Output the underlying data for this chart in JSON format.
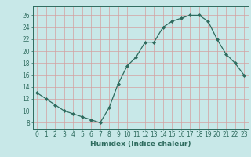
{
  "x": [
    0,
    1,
    2,
    3,
    4,
    5,
    6,
    7,
    8,
    9,
    10,
    11,
    12,
    13,
    14,
    15,
    16,
    17,
    18,
    19,
    20,
    21,
    22,
    23
  ],
  "y": [
    13,
    12,
    11,
    10,
    9.5,
    9,
    8.5,
    8,
    10.5,
    14.5,
    17.5,
    19,
    21.5,
    21.5,
    24,
    25,
    25.5,
    26,
    26,
    25,
    22,
    19.5,
    18,
    16
  ],
  "xlabel": "Humidex (Indice chaleur)",
  "xlim": [
    -0.5,
    23.5
  ],
  "ylim": [
    7,
    27.5
  ],
  "yticks": [
    8,
    10,
    12,
    14,
    16,
    18,
    20,
    22,
    24,
    26
  ],
  "xticks": [
    0,
    1,
    2,
    3,
    4,
    5,
    6,
    7,
    8,
    9,
    10,
    11,
    12,
    13,
    14,
    15,
    16,
    17,
    18,
    19,
    20,
    21,
    22,
    23
  ],
  "line_color": "#2e6b5e",
  "marker": "D",
  "marker_size": 2.0,
  "bg_color": "#c8e8e8",
  "grid_color": "#d4a0a0",
  "axis_fontsize": 5.5,
  "xlabel_fontsize": 6.5
}
